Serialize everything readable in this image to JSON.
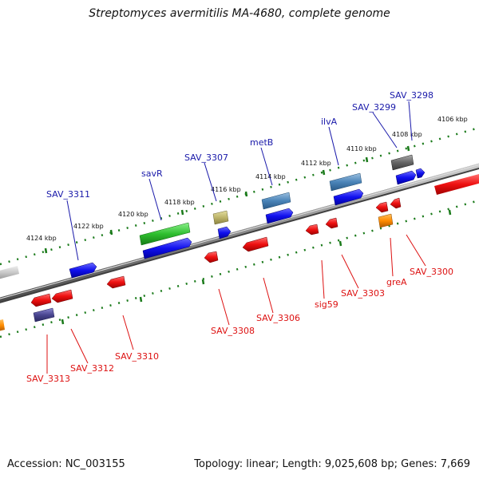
{
  "title": "Streptomyces avermitilis MA-4680, complete genome",
  "footer": {
    "accession": "Accession: NC_003155",
    "summary": "Topology: linear; Length: 9,025,608 bp; Genes: 7,669"
  },
  "colors": {
    "forward_label": "#1a1aaa",
    "reverse_label": "#dd1111",
    "tick": "#1a7a1a",
    "backbone": "#777777"
  },
  "kbp_ticks": [
    {
      "kbp": 4124,
      "label": "4124 kbp"
    },
    {
      "kbp": 4122,
      "label": "4122 kbp"
    },
    {
      "kbp": 4120,
      "label": "4120 kbp"
    },
    {
      "kbp": 4118,
      "label": "4118 kbp"
    },
    {
      "kbp": 4116,
      "label": "4116 kbp"
    },
    {
      "kbp": 4114,
      "label": "4114 kbp"
    },
    {
      "kbp": 4112,
      "label": "4112 kbp"
    },
    {
      "kbp": 4110,
      "label": "4110 kbp"
    },
    {
      "kbp": 4108,
      "label": "4108 kbp"
    },
    {
      "kbp": 4106,
      "label": "4106 kbp"
    }
  ],
  "forward_genes": [
    {
      "name": "SAV_3311",
      "color": "blue"
    },
    {
      "name": "savR",
      "color": "green"
    },
    {
      "name": "SAV_3307",
      "color": "khaki"
    },
    {
      "name": "metB",
      "color": "steelblue"
    },
    {
      "name": "ilvA",
      "color": "steelblue"
    },
    {
      "name": "SAV_3299",
      "color": "gray"
    },
    {
      "name": "SAV_3298",
      "color": "blue"
    }
  ],
  "reverse_genes": [
    {
      "name": "SAV_3313",
      "color": "slate"
    },
    {
      "name": "SAV_3312",
      "color": "red"
    },
    {
      "name": "SAV_3310",
      "color": "red"
    },
    {
      "name": "SAV_3308",
      "color": "red"
    },
    {
      "name": "SAV_3306",
      "color": "red"
    },
    {
      "name": "sig59",
      "color": "red"
    },
    {
      "name": "SAV_3303",
      "color": "red"
    },
    {
      "name": "greA",
      "color": "orange"
    },
    {
      "name": "SAV_3300",
      "color": "red"
    }
  ]
}
